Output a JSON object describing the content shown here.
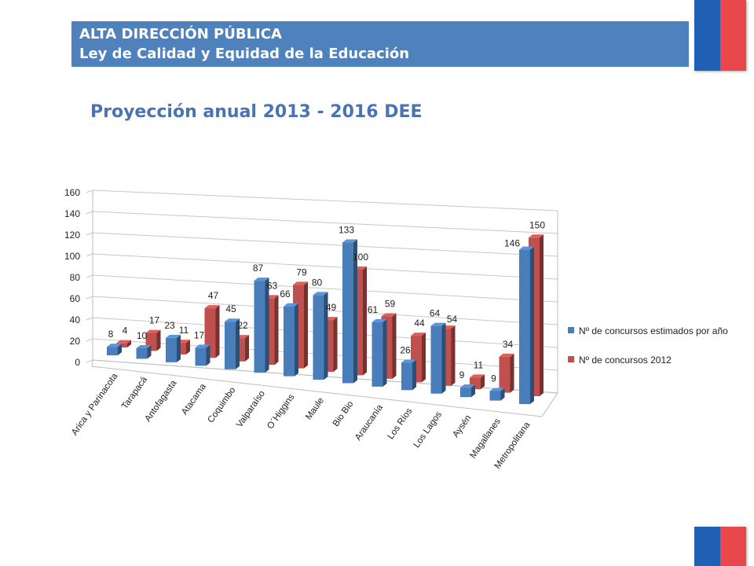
{
  "header": {
    "line1": "ALTA DIRECCIÓN PÚBLICA",
    "line2": "Ley de  Calidad y Equidad de la Educación"
  },
  "colors": {
    "header_bg": "#4f81bd",
    "title": "#4a73b3",
    "series_blue": "#4a7ebb",
    "series_red": "#c0504d",
    "flag_blue": "#1f5fb4",
    "flag_red": "#e8474c"
  },
  "chart_data": {
    "type": "bar",
    "title": "Proyección anual 2013 - 2016 DEE",
    "xlabel": "",
    "ylabel": "",
    "ylim": [
      0,
      160
    ],
    "yticks": [
      "0",
      "20",
      "40",
      "60",
      "80",
      "100",
      "120",
      "140",
      "160"
    ],
    "grid": true,
    "legend_position": "right",
    "categories": [
      "Arica y Parinacota",
      "Tarapacá",
      "Antofagasta",
      "Atacama",
      "Coquimbo",
      "Valparaíso",
      "O´Higgins",
      "Maule",
      "Bio Bio",
      "Araucanía",
      "Los Ríos",
      "Los Lagos",
      "Aysén",
      "Magallanes",
      "Metropolitana"
    ],
    "series": [
      {
        "name": "Nº de concursos estimados por año",
        "values": [
          8,
          10,
          23,
          17,
          45,
          87,
          66,
          80,
          133,
          61,
          26,
          64,
          9,
          9,
          146
        ]
      },
      {
        "name": "Nº de concursos 2012",
        "values": [
          4,
          17,
          11,
          47,
          22,
          63,
          79,
          49,
          100,
          59,
          44,
          54,
          11,
          34,
          150
        ]
      }
    ]
  }
}
